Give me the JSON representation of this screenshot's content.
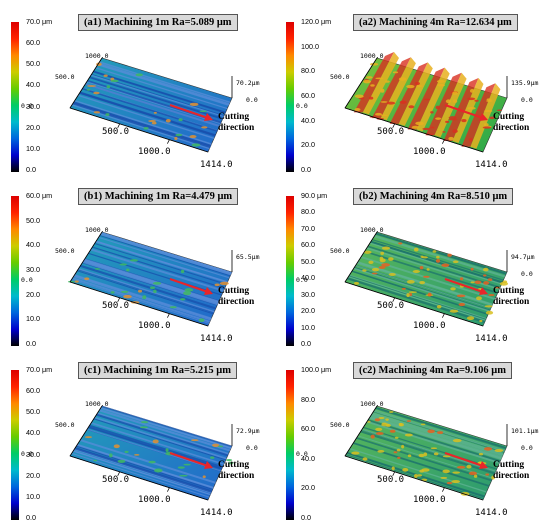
{
  "colors": {
    "scale": [
      "#000000",
      "#0000cc",
      "#0066dd",
      "#00bbcc",
      "#00cc66",
      "#66cc00",
      "#cccc00",
      "#ff8800",
      "#ff2200",
      "#dd0000"
    ],
    "arrow": "#e8252a"
  },
  "panels": [
    {
      "id": "a1",
      "title": "(a1)  Machining 1m  Ra=5.089 μm",
      "colorbar": [
        "70.0 μm",
        "60.0",
        "50.0",
        "40.0",
        "30.0",
        "20.0",
        "10.0",
        "0.0"
      ],
      "axes": {
        "x_mid": "500.0",
        "x_mid2": "1000.0",
        "x_end": "1414.0",
        "y_top": "1000.0",
        "y_mid": "500.0",
        "origin": "0.0",
        "z_top": "70.2μm",
        "z_zero": "0.0"
      },
      "cutting": [
        "Cutting",
        "direction"
      ],
      "surface_tone": "blue-green"
    },
    {
      "id": "a2",
      "title": "(a2)  Machining 4m  Ra=12.634 μm",
      "colorbar": [
        "120.0 μm",
        "100.0",
        "80.0",
        "60.0",
        "40.0",
        "20.0",
        "0.0"
      ],
      "axes": {
        "x_mid": "500.0",
        "x_mid2": "1000.0",
        "x_end": "1414.0",
        "y_top": "1000.0",
        "y_mid": "500.0",
        "origin": "0.0",
        "z_top": "135.9μm",
        "z_zero": "0.0"
      },
      "cutting": [
        "Cutting",
        "direction"
      ],
      "surface_tone": "green-red ridges"
    },
    {
      "id": "b1",
      "title": "(b1)  Machining 1m  Ra=4.479 μm",
      "colorbar": [
        "60.0 μm",
        "50.0",
        "40.0",
        "30.0",
        "20.0",
        "10.0",
        "0.0"
      ],
      "axes": {
        "x_mid": "500.0",
        "x_mid2": "1000.0",
        "x_end": "1414.0",
        "y_top": "1000.0",
        "y_mid": "500.0",
        "origin": "0.0",
        "z_top": "65.5μm",
        "z_zero": ""
      },
      "cutting": [
        "Cutting",
        "direction"
      ],
      "surface_tone": "blue-green"
    },
    {
      "id": "b2",
      "title": "(b2)  Machining 4m  Ra=8.510 μm",
      "colorbar": [
        "90.0 μm",
        "80.0",
        "70.0",
        "60.0",
        "50.0",
        "40.0",
        "30.0",
        "20.0",
        "10.0",
        "0.0"
      ],
      "axes": {
        "x_mid": "500.0",
        "x_mid2": "1000.0",
        "x_end": "1414.0",
        "y_top": "1000.0",
        "y_mid": "500.0",
        "origin": "0.0",
        "z_top": "94.7μm",
        "z_zero": "0.0"
      },
      "cutting": [
        "Cutting",
        "direction"
      ],
      "surface_tone": "green-orange"
    },
    {
      "id": "c1",
      "title": "(c1)  Machining 1m  Ra=5.215 μm",
      "colorbar": [
        "70.0 μm",
        "60.0",
        "50.0",
        "40.0",
        "30.0",
        "20.0",
        "10.0",
        "0.0"
      ],
      "axes": {
        "x_mid": "500.0",
        "x_mid2": "1000.0",
        "x_end": "1414.0",
        "y_top": "1000.0",
        "y_mid": "500.0",
        "origin": "0.0",
        "z_top": "72.9μm",
        "z_zero": "0.0"
      },
      "cutting": [
        "Cutting",
        "direction"
      ],
      "surface_tone": "blue-green"
    },
    {
      "id": "c2",
      "title": "(c2)  Machining 4m  Ra=9.106 μm",
      "colorbar": [
        "100.0 μm",
        "80.0",
        "60.0",
        "40.0",
        "20.0",
        "0.0"
      ],
      "axes": {
        "x_mid": "500.0",
        "x_mid2": "1000.0",
        "x_end": "1414.0",
        "y_top": "1000.0",
        "y_mid": "500.0",
        "origin": "0.0",
        "z_top": "101.1μm",
        "z_zero": "0.0"
      },
      "cutting": [
        "Cutting",
        "direction"
      ],
      "surface_tone": "green-orange"
    }
  ]
}
